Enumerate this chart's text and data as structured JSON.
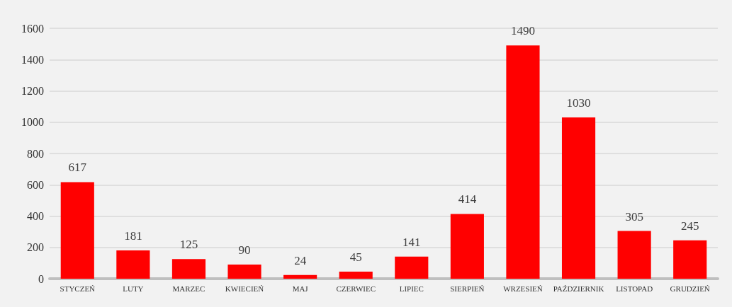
{
  "chart_data": {
    "type": "bar",
    "categories": [
      "STYCZEŃ",
      "LUTY",
      "MARZEC",
      "KWIECIEŃ",
      "MAJ",
      "CZERWIEC",
      "LIPIEC",
      "SIERPIEŃ",
      "WRZESIEŃ",
      "PAŹDZIERNIK",
      "LISTOPAD",
      "GRUDZIEŃ"
    ],
    "values": [
      617,
      181,
      125,
      90,
      24,
      45,
      141,
      414,
      1490,
      1030,
      305,
      245
    ],
    "color": "#ff0000",
    "ylim": [
      0,
      1600
    ],
    "yticks": [
      0,
      200,
      400,
      600,
      800,
      1000,
      1200,
      1400,
      1600
    ],
    "grid": "y",
    "data_labels": true
  }
}
